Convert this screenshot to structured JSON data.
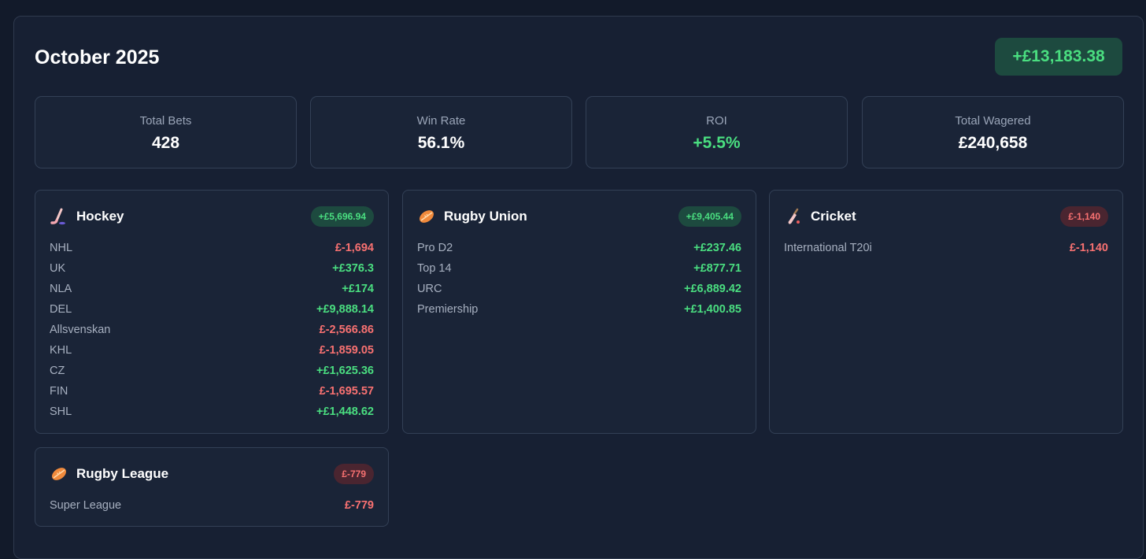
{
  "header": {
    "title": "October 2025",
    "total_profit": "+£13,183.38"
  },
  "stats": [
    {
      "label": "Total Bets",
      "value": "428"
    },
    {
      "label": "Win Rate",
      "value": "56.1%"
    },
    {
      "label": "ROI",
      "value": "+5.5%"
    },
    {
      "label": "Total Wagered",
      "value": "£240,658"
    }
  ],
  "sports": {
    "hockey": {
      "name": "Hockey",
      "icon": "hockey-stick-icon",
      "total": "+£5,696.94",
      "leagues": [
        {
          "name": "NHL",
          "amount": "£-1,694"
        },
        {
          "name": "UK",
          "amount": "+£376.3"
        },
        {
          "name": "NLA",
          "amount": "+£174"
        },
        {
          "name": "DEL",
          "amount": "+£9,888.14"
        },
        {
          "name": "Allsvenskan",
          "amount": "£-2,566.86"
        },
        {
          "name": "KHL",
          "amount": "£-1,859.05"
        },
        {
          "name": "CZ",
          "amount": "+£1,625.36"
        },
        {
          "name": "FIN",
          "amount": "£-1,695.57"
        },
        {
          "name": "SHL",
          "amount": "+£1,448.62"
        }
      ]
    },
    "rugby_union": {
      "name": "Rugby Union",
      "icon": "rugby-ball-icon",
      "total": "+£9,405.44",
      "leagues": [
        {
          "name": "Pro D2",
          "amount": "+£237.46"
        },
        {
          "name": "Top 14",
          "amount": "+£877.71"
        },
        {
          "name": "URC",
          "amount": "+£6,889.42"
        },
        {
          "name": "Premiership",
          "amount": "+£1,400.85"
        }
      ]
    },
    "cricket": {
      "name": "Cricket",
      "icon": "cricket-bat-icon",
      "total": "£-1,140",
      "leagues": [
        {
          "name": "International T20i",
          "amount": "£-1,140"
        }
      ]
    },
    "rugby_league": {
      "name": "Rugby League",
      "icon": "rugby-ball-icon",
      "total": "£-779",
      "leagues": [
        {
          "name": "Super League",
          "amount": "£-779"
        }
      ]
    }
  },
  "colors": {
    "positive": "#4ade80",
    "negative": "#f87171",
    "background": "#121a2a",
    "card": "#1a2437"
  }
}
